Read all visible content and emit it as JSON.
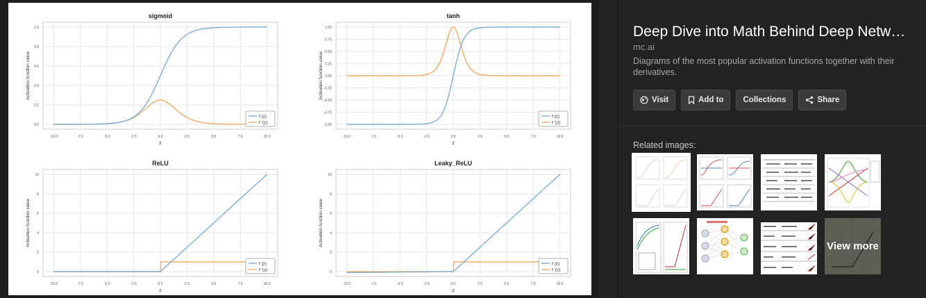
{
  "viewer": {
    "plots": [
      {
        "title": "sigmoid",
        "ylabel": "Activation function value",
        "xlabel": "z",
        "xticks": [
          "-10.0",
          "-7.5",
          "-5.0",
          "-2.5",
          "0.0",
          "2.5",
          "5.0",
          "7.5",
          "10.0"
        ],
        "yticks": [
          "0.0",
          "0.2",
          "0.4",
          "0.6",
          "0.8",
          "1.0"
        ],
        "legend": [
          "f (z)",
          "f '(z)"
        ]
      },
      {
        "title": "tanh",
        "ylabel": "Activation function value",
        "xlabel": "z",
        "xticks": [
          "-10.0",
          "-7.5",
          "-5.0",
          "-2.5",
          "0.0",
          "2.5",
          "5.0",
          "7.5",
          "10.0"
        ],
        "yticks": [
          "-1.00",
          "-0.75",
          "-0.50",
          "-0.25",
          "0.00",
          "0.25",
          "0.50",
          "0.75",
          "1.00"
        ],
        "legend": [
          "f (z)",
          "f '(z)"
        ]
      },
      {
        "title": "ReLU",
        "ylabel": "Activation function value",
        "xlabel": "z",
        "xticks": [
          "-10.0",
          "-7.5",
          "-5.0",
          "-2.5",
          "0.0",
          "2.5",
          "5.0",
          "7.5",
          "10.0"
        ],
        "yticks": [
          "0",
          "2",
          "4",
          "6",
          "8",
          "10"
        ],
        "legend": [
          "f (z)",
          "f '(z)"
        ]
      },
      {
        "title": "Leaky_ReLU",
        "ylabel": "Activation function value",
        "xlabel": "z",
        "xticks": [
          "-10.0",
          "-7.5",
          "-5.0",
          "-2.5",
          "0.0",
          "2.5",
          "5.0",
          "7.5",
          "10.0"
        ],
        "yticks": [
          "0",
          "2",
          "4",
          "6",
          "8",
          "10"
        ],
        "legend": [
          "f (z)",
          "f '(z)"
        ]
      }
    ],
    "colors": {
      "f": "#7aaed6",
      "df": "#f4a862"
    }
  },
  "panel": {
    "title": "Deep Dive into Math Behind Deep Netw…",
    "domain": "mc.ai",
    "description": "Diagrams of the most popular activation functions together with their derivatives.",
    "buttons": {
      "visit": "Visit",
      "add_to": "Add to",
      "collections": "Collections",
      "share": "Share"
    },
    "related_label": "Related images:",
    "view_more": "View more"
  }
}
